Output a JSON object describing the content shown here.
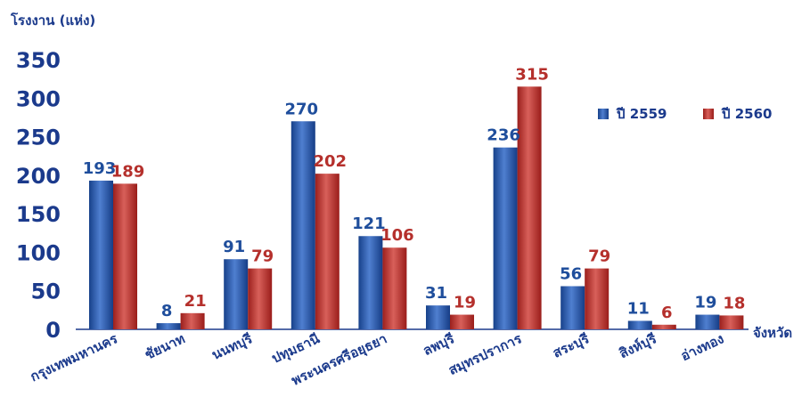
{
  "chart_data": {
    "type": "bar",
    "ylabel": "โรงงาน (แห่ง)",
    "xlabel": "จังหวัด",
    "ylim": [
      0,
      350
    ],
    "yticks": [
      0,
      50,
      100,
      150,
      200,
      250,
      300,
      350
    ],
    "categories": [
      "กรุงเทพมหานคร",
      "ชัยนาท",
      "นนทบุรี",
      "ปทุมธานี",
      "พระนครศรีอยุธยา",
      "ลพบุรี",
      "สมุทรปราการ",
      "สระบุรี",
      "สิงห์บุรี",
      "อ่างทอง"
    ],
    "series": [
      {
        "name": "ปี 2559",
        "values": [
          193,
          8,
          91,
          270,
          121,
          31,
          236,
          56,
          11,
          19
        ]
      },
      {
        "name": "ปี 2560",
        "values": [
          189,
          21,
          79,
          202,
          106,
          19,
          315,
          79,
          6,
          18
        ]
      }
    ],
    "legend_position": "top-right",
    "grid": false
  },
  "colors": {
    "series_2559": "#1f4e9c",
    "series_2560": "#b5302c",
    "axis_text": "#1b3a8c"
  }
}
